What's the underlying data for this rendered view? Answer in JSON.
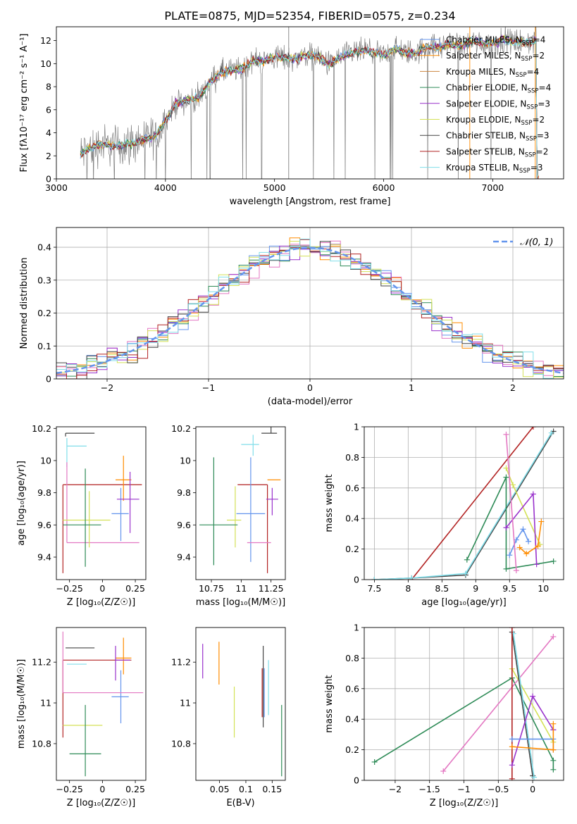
{
  "title": "PLATE=0875, MJD=52354, FIBERID=0575, z=0.234",
  "chart_data": [
    {
      "id": "spectrum",
      "type": "line",
      "xlabel": "wavelength [Angstrom, rest frame]",
      "ylabel": "Flux [fλ10⁻¹⁷ erg cm⁻² s⁻¹ A⁻¹]",
      "xlim": [
        3000,
        7650
      ],
      "ylim": [
        0,
        13.2
      ],
      "xticks": [
        3000,
        4000,
        5000,
        6000,
        7000
      ],
      "yticks": [
        0,
        2,
        4,
        6,
        8,
        10,
        12
      ],
      "grid": false,
      "legend_position": "top-right",
      "continuum": {
        "x": [
          3220,
          3300,
          3400,
          3500,
          3600,
          3700,
          3800,
          3900,
          4000,
          4100,
          4200,
          4300,
          4400,
          4500,
          4600,
          4700,
          4800,
          4900,
          5000,
          5100,
          5200,
          5300,
          5400,
          5500,
          5600,
          5700,
          5800,
          5900,
          6000,
          6100,
          6200,
          6300,
          6400,
          6500,
          6600,
          6700,
          6800,
          6900,
          7000,
          7100,
          7200,
          7300,
          7400
        ],
        "y": [
          2.1,
          2.6,
          3.0,
          2.9,
          2.9,
          3.1,
          3.4,
          3.6,
          5.0,
          6.6,
          6.8,
          7.0,
          8.3,
          9.2,
          9.4,
          9.5,
          10.3,
          10.2,
          10.6,
          10.5,
          10.4,
          10.8,
          10.6,
          9.9,
          10.5,
          10.9,
          11.1,
          11.0,
          10.7,
          11.3,
          11.0,
          10.9,
          11.5,
          11.4,
          11.7,
          11.5,
          11.9,
          11.8,
          11.7,
          12.1,
          11.9,
          11.8,
          12.1
        ]
      },
      "series": [
        {
          "name": "Chabrier MILES, N_SSP=4",
          "color": "#6495ed"
        },
        {
          "name": "Salpeter MILES, N_SSP=2",
          "color": "#ff8c00"
        },
        {
          "name": "Kroupa MILES, N_SSP=4",
          "color": "#cd853f"
        },
        {
          "name": "Chabrier ELODIE, N_SSP=4",
          "color": "#2e8b57"
        },
        {
          "name": "Salpeter ELODIE, N_SSP=3",
          "color": "#9932cc"
        },
        {
          "name": "Kroupa ELODIE, N_SSP=2",
          "color": "#d4e157"
        },
        {
          "name": "Chabrier STELIB, N_SSP=3",
          "color": "#444444"
        },
        {
          "name": "Salpeter STELIB, N_SSP=2",
          "color": "#b22222"
        },
        {
          "name": "Kroupa STELIB, N_SSP=3",
          "color": "#80deea"
        }
      ]
    },
    {
      "id": "residuals",
      "type": "line",
      "xlabel": "(data-model)/error",
      "ylabel": "Normed distribution",
      "xlim": [
        -2.5,
        2.5
      ],
      "ylim": [
        0,
        0.46
      ],
      "xticks": [
        -2,
        -1,
        0,
        1,
        2
      ],
      "yticks": [
        0.0,
        0.1,
        0.2,
        0.3,
        0.4
      ],
      "grid": true,
      "legend": [
        "𝒩(0, 1)"
      ],
      "legend_position": "top-right",
      "histogram_colors": [
        "#6495ed",
        "#ff8c00",
        "#e377c2",
        "#2e8b57",
        "#9932cc",
        "#d4e157",
        "#444444",
        "#b22222",
        "#80deea"
      ]
    },
    {
      "id": "age-vs-Z",
      "type": "scatter",
      "xlabel": "Z [log₁₀(Z/Z☉)]",
      "ylabel": "age  [log₁₀(age/yr)]",
      "xlim": [
        -0.35,
        0.33
      ],
      "ylim": [
        9.26,
        10.21
      ],
      "xticks": [
        -0.25,
        0.0,
        0.25
      ],
      "yticks": [
        9.4,
        9.6,
        9.8,
        10.0,
        10.2
      ],
      "errorbars": [
        {
          "color": "#444444",
          "x": -0.28,
          "xerr": [
            0.0,
            0.22
          ],
          "y": 10.17,
          "yerr": [
            0.02,
            0.0
          ]
        },
        {
          "color": "#80deea",
          "x": -0.27,
          "xerr": [
            0.0,
            0.15
          ],
          "y": 10.09,
          "yerr": [
            0.13,
            0.05
          ]
        },
        {
          "color": "#b22222",
          "x": -0.3,
          "xerr": [
            0.0,
            0.6
          ],
          "y": 9.85,
          "yerr": [
            0.55,
            0.0
          ]
        },
        {
          "color": "#ff8c00",
          "x": 0.16,
          "xerr": [
            0.06,
            0.06
          ],
          "y": 9.88,
          "yerr": [
            0.13,
            0.15
          ]
        },
        {
          "color": "#6495ed",
          "x": 0.14,
          "xerr": [
            0.07,
            0.06
          ],
          "y": 9.67,
          "yerr": [
            0.17,
            0.16
          ]
        },
        {
          "color": "#9932cc",
          "x": 0.21,
          "xerr": [
            0.1,
            0.07
          ],
          "y": 9.76,
          "yerr": [
            0.21,
            0.17
          ]
        },
        {
          "color": "#e377c2",
          "x": -0.27,
          "xerr": [
            0.0,
            0.55
          ],
          "y": 9.49,
          "yerr": [
            0.0,
            0.5
          ]
        },
        {
          "color": "#d4e157",
          "x": -0.1,
          "xerr": [
            0.2,
            0.16
          ],
          "y": 9.63,
          "yerr": [
            0.17,
            0.18
          ]
        },
        {
          "color": "#2e8b57",
          "x": -0.13,
          "xerr": [
            0.17,
            0.12
          ],
          "y": 9.6,
          "yerr": [
            0.26,
            0.35
          ]
        }
      ]
    },
    {
      "id": "age-vs-mass",
      "type": "scatter",
      "xlabel": "mass [log₁₀(M/M☉)]",
      "xlim": [
        10.62,
        11.37
      ],
      "ylim": [
        9.26,
        10.21
      ],
      "xticks": [
        10.75,
        11.0,
        11.25
      ],
      "yticks": [
        9.4,
        9.6,
        9.8,
        10.0,
        10.2
      ],
      "errorbars": [
        {
          "color": "#444444",
          "x": 11.25,
          "xerr": [
            0.08,
            0.05
          ],
          "y": 10.17,
          "yerr": [
            0.0,
            0.1
          ]
        },
        {
          "color": "#80deea",
          "x": 11.1,
          "xerr": [
            0.1,
            0.05
          ],
          "y": 10.1,
          "yerr": [
            0.07,
            0.06
          ]
        },
        {
          "color": "#b22222",
          "x": 11.22,
          "xerr": [
            0.25,
            0.0
          ],
          "y": 9.85,
          "yerr": [
            0.55,
            0.0
          ]
        },
        {
          "color": "#ff8c00",
          "x": 11.28,
          "xerr": [
            0.06,
            0.05
          ],
          "y": 9.88,
          "yerr": [
            0.0,
            0.0
          ]
        },
        {
          "color": "#6495ed",
          "x": 11.08,
          "xerr": [
            0.12,
            0.12
          ],
          "y": 9.67,
          "yerr": [
            0.3,
            0.35
          ]
        },
        {
          "color": "#9932cc",
          "x": 11.26,
          "xerr": [
            0.05,
            0.05
          ],
          "y": 9.76,
          "yerr": [
            0.1,
            0.07
          ]
        },
        {
          "color": "#e377c2",
          "x": 11.15,
          "xerr": [
            0.1,
            0.1
          ],
          "y": 9.49,
          "yerr": [
            0.0,
            0.0
          ]
        },
        {
          "color": "#d4e157",
          "x": 10.95,
          "xerr": [
            0.07,
            0.05
          ],
          "y": 9.63,
          "yerr": [
            0.17,
            0.21
          ]
        },
        {
          "color": "#2e8b57",
          "x": 10.77,
          "xerr": [
            0.12,
            0.2
          ],
          "y": 9.6,
          "yerr": [
            0.25,
            0.42
          ]
        }
      ]
    },
    {
      "id": "massweight-vs-age",
      "type": "line",
      "xlabel": "age  [log₁₀(age/yr)]",
      "ylabel": "mass weight",
      "xlim": [
        7.35,
        10.3
      ],
      "ylim": [
        0,
        1
      ],
      "xticks": [
        7.5,
        8.0,
        8.5,
        9.0,
        9.5,
        10.0
      ],
      "yticks": [
        0.0,
        0.2,
        0.4,
        0.6,
        0.8,
        1.0
      ],
      "grid": true,
      "series": [
        {
          "color": "#b22222",
          "x": [
            8.05,
            9.85
          ],
          "y": [
            0.0,
            1.0
          ]
        },
        {
          "color": "#444444",
          "x": [
            7.5,
            8.05,
            8.85,
            10.15
          ],
          "y": [
            0.0,
            0.01,
            0.03,
            0.97
          ]
        },
        {
          "color": "#80deea",
          "x": [
            7.5,
            8.05,
            8.85,
            10.12
          ],
          "y": [
            0.0,
            0.01,
            0.04,
            0.96
          ]
        },
        {
          "color": "#2e8b57",
          "x": [
            8.87,
            9.45,
            9.45,
            10.15
          ],
          "y": [
            0.13,
            0.67,
            0.07,
            0.12
          ]
        },
        {
          "color": "#d4e157",
          "x": [
            9.45,
            9.55,
            9.95
          ],
          "y": [
            0.73,
            0.62,
            0.23
          ]
        },
        {
          "color": "#9932cc",
          "x": [
            9.45,
            9.85,
            9.9
          ],
          "y": [
            0.34,
            0.56,
            0.1
          ]
        },
        {
          "color": "#6495ed",
          "x": [
            9.5,
            9.6,
            9.7,
            9.78
          ],
          "y": [
            0.16,
            0.26,
            0.33,
            0.25
          ]
        },
        {
          "color": "#ff8c00",
          "x": [
            9.65,
            9.75,
            9.92,
            9.97
          ],
          "y": [
            0.21,
            0.17,
            0.22,
            0.38
          ]
        },
        {
          "color": "#e377c2",
          "x": [
            9.45,
            9.6
          ],
          "y": [
            0.95,
            0.06
          ]
        }
      ]
    },
    {
      "id": "mass-vs-Z",
      "type": "scatter",
      "xlabel": "Z [log₁₀(Z/Z☉)]",
      "ylabel": "mass [log₁₀(M/M☉)]",
      "xlim": [
        -0.35,
        0.33
      ],
      "ylim": [
        10.62,
        11.37
      ],
      "xticks": [
        -0.25,
        0.0,
        0.25
      ],
      "yticks": [
        10.8,
        11.0,
        11.2
      ],
      "errorbars": [
        {
          "color": "#444444",
          "x": -0.28,
          "xerr": [
            0.0,
            0.22
          ],
          "y": 11.27,
          "yerr": [
            0.0,
            0.0
          ]
        },
        {
          "color": "#80deea",
          "x": -0.27,
          "xerr": [
            0.0,
            0.15
          ],
          "y": 11.19,
          "yerr": [
            0.0,
            0.0
          ]
        },
        {
          "color": "#b22222",
          "x": -0.3,
          "xerr": [
            0.0,
            0.52
          ],
          "y": 11.21,
          "yerr": [
            0.38,
            0.0
          ]
        },
        {
          "color": "#ff8c00",
          "x": 0.16,
          "xerr": [
            0.06,
            0.06
          ],
          "y": 11.22,
          "yerr": [
            0.08,
            0.1
          ]
        },
        {
          "color": "#6495ed",
          "x": 0.14,
          "xerr": [
            0.07,
            0.06
          ],
          "y": 11.03,
          "yerr": [
            0.13,
            0.13
          ]
        },
        {
          "color": "#9932cc",
          "x": 0.1,
          "xerr": [
            0.0,
            0.11
          ],
          "y": 11.21,
          "yerr": [
            0.1,
            0.07
          ]
        },
        {
          "color": "#e377c2",
          "x": -0.3,
          "xerr": [
            0.0,
            0.61
          ],
          "y": 11.05,
          "yerr": [
            0.0,
            0.3
          ]
        },
        {
          "color": "#d4e157",
          "x": -0.1,
          "xerr": [
            0.2,
            0.1
          ],
          "y": 10.89,
          "yerr": [
            0.0,
            0.0
          ]
        },
        {
          "color": "#2e8b57",
          "x": -0.13,
          "xerr": [
            0.12,
            0.12
          ],
          "y": 10.75,
          "yerr": [
            0.11,
            0.24
          ]
        }
      ]
    },
    {
      "id": "mass-vs-EBV",
      "type": "scatter",
      "xlabel": "E(B-V)",
      "xlim": [
        0.005,
        0.175
      ],
      "ylim": [
        10.62,
        11.37
      ],
      "xticks": [
        0.05,
        0.1,
        0.15
      ],
      "yticks": [
        10.8,
        11.0,
        11.2
      ],
      "errorbars": [
        {
          "color": "#9932cc",
          "x": 0.018,
          "xerr": [
            0.0,
            0.0
          ],
          "y": 11.2,
          "yerr": [
            0.08,
            0.09
          ]
        },
        {
          "color": "#ff8c00",
          "x": 0.049,
          "xerr": [
            0.0,
            0.0
          ],
          "y": 11.2,
          "yerr": [
            0.11,
            0.1
          ]
        },
        {
          "color": "#d4e157",
          "x": 0.078,
          "xerr": [
            0.0,
            0.0
          ],
          "y": 10.95,
          "yerr": [
            0.12,
            0.13
          ]
        },
        {
          "color": "#444444",
          "x": 0.133,
          "xerr": [
            0.0,
            0.0
          ],
          "y": 11.05,
          "yerr": [
            0.17,
            0.23
          ]
        },
        {
          "color": "#b22222",
          "x": 0.131,
          "xerr": [
            0.0,
            0.0
          ],
          "y": 11.05,
          "yerr": [
            0.12,
            0.12
          ]
        },
        {
          "color": "#6495ed",
          "x": 0.135,
          "xerr": [
            0.0,
            0.0
          ],
          "y": 11.05,
          "yerr": [
            0.12,
            0.12
          ]
        },
        {
          "color": "#80deea",
          "x": 0.143,
          "xerr": [
            0.0,
            0.0
          ],
          "y": 11.08,
          "yerr": [
            0.14,
            0.13
          ]
        },
        {
          "color": "#2e8b57",
          "x": 0.168,
          "xerr": [
            0.0,
            0.0
          ],
          "y": 10.8,
          "yerr": [
            0.16,
            0.19
          ]
        }
      ]
    },
    {
      "id": "massweight-vs-Z",
      "type": "line",
      "xlabel": "Z [log₁₀(Z/Z☉)]",
      "ylabel": "mass weight",
      "xlim": [
        -2.45,
        0.45
      ],
      "ylim": [
        0,
        1
      ],
      "xticks": [
        -2.0,
        -1.5,
        -1.0,
        -0.5,
        0.0
      ],
      "yticks": [
        0.0,
        0.2,
        0.4,
        0.6,
        0.8,
        1.0
      ],
      "grid": true,
      "series": [
        {
          "color": "#2e8b57",
          "x": [
            -2.3,
            -0.3,
            0.3,
            0.3
          ],
          "y": [
            0.12,
            0.67,
            0.13,
            0.07
          ]
        },
        {
          "color": "#e377c2",
          "x": [
            -1.3,
            0.3
          ],
          "y": [
            0.06,
            0.94
          ]
        },
        {
          "color": "#d4e157",
          "x": [
            -0.3,
            0.3
          ],
          "y": [
            0.73,
            0.25
          ]
        },
        {
          "color": "#444444",
          "x": [
            -0.3,
            0.0
          ],
          "y": [
            0.97,
            0.03
          ]
        },
        {
          "color": "#80deea",
          "x": [
            -0.28,
            0.02
          ],
          "y": [
            0.96,
            0.02
          ]
        },
        {
          "color": "#b22222",
          "x": [
            -0.3,
            -0.3
          ],
          "y": [
            1.0,
            0.01
          ]
        },
        {
          "color": "#9932cc",
          "x": [
            -0.3,
            0.0,
            0.3,
            0.3
          ],
          "y": [
            0.1,
            0.55,
            0.33,
            0.33
          ]
        },
        {
          "color": "#6495ed",
          "x": [
            -0.3,
            0.3,
            0.3
          ],
          "y": [
            0.27,
            0.27,
            0.2
          ]
        },
        {
          "color": "#ff8c00",
          "x": [
            -0.3,
            0.3,
            0.3
          ],
          "y": [
            0.22,
            0.2,
            0.37
          ]
        }
      ]
    }
  ]
}
